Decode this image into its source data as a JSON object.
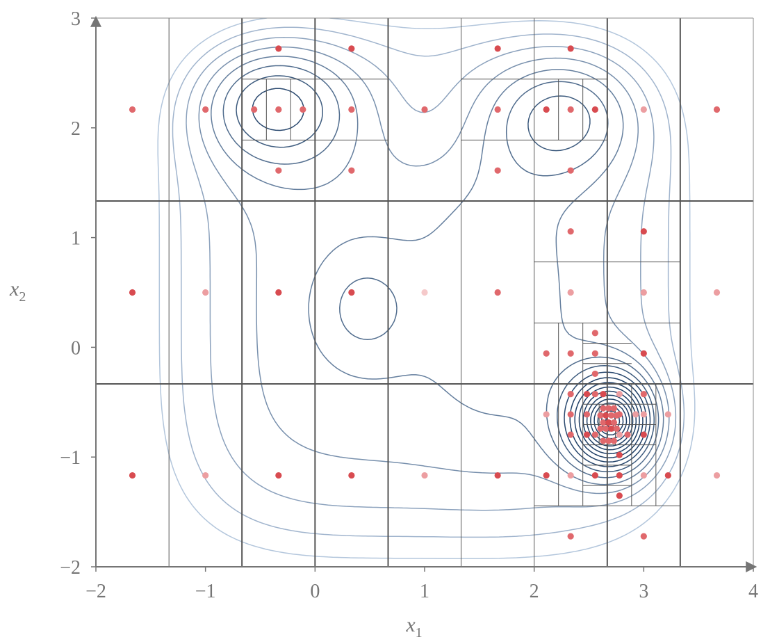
{
  "chart_data": {
    "type": "scatter",
    "title": "",
    "xlabel": "x",
    "xlabel_sub": "1",
    "ylabel": "x",
    "ylabel_sub": "2",
    "xlim": [
      -2,
      4
    ],
    "ylim": [
      -2,
      3
    ],
    "xticks": [
      {
        "value": -2,
        "label": "−2"
      },
      {
        "value": -1,
        "label": "−1"
      },
      {
        "value": 0,
        "label": "0"
      },
      {
        "value": 1,
        "label": "1"
      },
      {
        "value": 2,
        "label": "2"
      },
      {
        "value": 3,
        "label": "3"
      },
      {
        "value": 4,
        "label": "4"
      }
    ],
    "yticks": [
      {
        "value": -2,
        "label": "−2"
      },
      {
        "value": -1,
        "label": "−1"
      },
      {
        "value": 0,
        "label": "0"
      },
      {
        "value": 1,
        "label": "1"
      },
      {
        "value": 2,
        "label": "2"
      },
      {
        "value": 3,
        "label": "3"
      }
    ],
    "grid": false,
    "contour": {
      "description_free": true,
      "levels": 18,
      "color_low": "#1f3f66",
      "color_high": "#c7d8ec"
    },
    "partition_lines": [
      {
        "dir": "v",
        "x": -1.333,
        "y0": -2,
        "y1": 3,
        "weight": "thin"
      },
      {
        "dir": "v",
        "x": -0.667,
        "y0": -2,
        "y1": 3,
        "weight": "thick"
      },
      {
        "dir": "v",
        "x": 0,
        "y0": -2,
        "y1": 3,
        "weight": "thick"
      },
      {
        "dir": "v",
        "x": 0.667,
        "y0": -2,
        "y1": 3,
        "weight": "thick"
      },
      {
        "dir": "v",
        "x": 1.333,
        "y0": -2,
        "y1": 3,
        "weight": "thin"
      },
      {
        "dir": "v",
        "x": 2,
        "y0": -2,
        "y1": 3,
        "weight": "thin"
      },
      {
        "dir": "v",
        "x": 2.667,
        "y0": -2,
        "y1": 3,
        "weight": "thick"
      },
      {
        "dir": "v",
        "x": 3.333,
        "y0": -2,
        "y1": 3,
        "weight": "thick"
      },
      {
        "dir": "h",
        "y": 1.333,
        "x0": -2,
        "x1": 4,
        "weight": "thick"
      },
      {
        "dir": "h",
        "y": -0.333,
        "x0": -2,
        "x1": 4,
        "weight": "thick"
      },
      {
        "dir": "h",
        "y": 2.444,
        "x0": -0.667,
        "x1": 0.667,
        "weight": "thin"
      },
      {
        "dir": "h",
        "y": 1.889,
        "x0": -0.667,
        "x1": 0.667,
        "weight": "thin"
      },
      {
        "dir": "v",
        "x": -0.444,
        "y0": 1.889,
        "y1": 2.444,
        "weight": "thin"
      },
      {
        "dir": "v",
        "x": -0.222,
        "y0": 1.889,
        "y1": 2.444,
        "weight": "thin"
      },
      {
        "dir": "h",
        "y": 2.444,
        "x0": 1.333,
        "x1": 2.667,
        "weight": "thin"
      },
      {
        "dir": "h",
        "y": 1.889,
        "x0": 1.333,
        "x1": 2.667,
        "weight": "thin"
      },
      {
        "dir": "v",
        "x": 2.222,
        "y0": 1.889,
        "y1": 2.444,
        "weight": "thin"
      },
      {
        "dir": "v",
        "x": 2.444,
        "y0": 1.889,
        "y1": 2.444,
        "weight": "thin"
      },
      {
        "dir": "h",
        "y": 0.778,
        "x0": 2,
        "x1": 3.333,
        "weight": "thin"
      },
      {
        "dir": "h",
        "y": 0.222,
        "x0": 2,
        "x1": 3.333,
        "weight": "thin"
      },
      {
        "dir": "h",
        "y": -1.444,
        "x0": 2,
        "x1": 3.333,
        "weight": "thin"
      },
      {
        "dir": "v",
        "x": 2.222,
        "y0": -1.444,
        "y1": 0.222,
        "weight": "thin"
      },
      {
        "dir": "v",
        "x": 2.444,
        "y0": -1.444,
        "y1": 0.222,
        "weight": "thin"
      },
      {
        "dir": "v",
        "x": 2.889,
        "y0": -1.444,
        "y1": -0.333,
        "weight": "thin"
      },
      {
        "dir": "v",
        "x": 3.111,
        "y0": -1.444,
        "y1": -0.333,
        "weight": "thin"
      },
      {
        "dir": "h",
        "y": 0.037,
        "x0": 2.444,
        "x1": 2.889,
        "weight": "thin"
      },
      {
        "dir": "h",
        "y": -0.148,
        "x0": 2.444,
        "x1": 2.889,
        "weight": "thin"
      },
      {
        "dir": "h",
        "y": -0.519,
        "x0": 2.444,
        "x1": 3.111,
        "weight": "thin"
      },
      {
        "dir": "h",
        "y": -0.704,
        "x0": 2.444,
        "x1": 3.111,
        "weight": "thin"
      },
      {
        "dir": "h",
        "y": -0.889,
        "x0": 2.444,
        "x1": 3.111,
        "weight": "thin"
      },
      {
        "dir": "h",
        "y": -1.074,
        "x0": 2.444,
        "x1": 2.889,
        "weight": "thin"
      },
      {
        "dir": "h",
        "y": -1.259,
        "x0": 2.444,
        "x1": 2.889,
        "weight": "thin"
      },
      {
        "dir": "v",
        "x": 2.593,
        "y0": -0.889,
        "y1": -0.519,
        "weight": "thin"
      },
      {
        "dir": "v",
        "x": 2.741,
        "y0": -0.889,
        "y1": -0.519,
        "weight": "thin"
      }
    ],
    "points": [
      {
        "x": -0.333,
        "y": 2.722,
        "s": "dark"
      },
      {
        "x": 0.333,
        "y": 2.722,
        "s": "dark"
      },
      {
        "x": 1.667,
        "y": 2.722,
        "s": "dark"
      },
      {
        "x": 2.333,
        "y": 2.722,
        "s": "dark"
      },
      {
        "x": -1.667,
        "y": 2.167,
        "s": "mid"
      },
      {
        "x": -1.0,
        "y": 2.167,
        "s": "mid"
      },
      {
        "x": -0.556,
        "y": 2.167,
        "s": "mid"
      },
      {
        "x": -0.333,
        "y": 2.167,
        "s": "mid"
      },
      {
        "x": -0.111,
        "y": 2.167,
        "s": "mid"
      },
      {
        "x": 0.333,
        "y": 2.167,
        "s": "mid"
      },
      {
        "x": 1.0,
        "y": 2.167,
        "s": "mid"
      },
      {
        "x": 1.667,
        "y": 2.167,
        "s": "mid"
      },
      {
        "x": 2.111,
        "y": 2.167,
        "s": "dark"
      },
      {
        "x": 2.333,
        "y": 2.167,
        "s": "mid"
      },
      {
        "x": 2.556,
        "y": 2.167,
        "s": "dark"
      },
      {
        "x": 3.0,
        "y": 2.167,
        "s": "light"
      },
      {
        "x": 3.667,
        "y": 2.167,
        "s": "mid"
      },
      {
        "x": -0.333,
        "y": 1.611,
        "s": "mid"
      },
      {
        "x": 0.333,
        "y": 1.611,
        "s": "mid"
      },
      {
        "x": 1.667,
        "y": 1.611,
        "s": "mid"
      },
      {
        "x": 2.333,
        "y": 1.611,
        "s": "mid"
      },
      {
        "x": 2.333,
        "y": 1.056,
        "s": "mid"
      },
      {
        "x": 3.0,
        "y": 1.056,
        "s": "dark"
      },
      {
        "x": -1.667,
        "y": 0.5,
        "s": "dark"
      },
      {
        "x": -1.0,
        "y": 0.5,
        "s": "light"
      },
      {
        "x": -0.333,
        "y": 0.5,
        "s": "dark"
      },
      {
        "x": 0.333,
        "y": 0.5,
        "s": "dark"
      },
      {
        "x": 1.0,
        "y": 0.5,
        "s": "pale"
      },
      {
        "x": 1.667,
        "y": 0.5,
        "s": "mid"
      },
      {
        "x": 2.333,
        "y": 0.5,
        "s": "light"
      },
      {
        "x": 3.0,
        "y": 0.5,
        "s": "light"
      },
      {
        "x": 3.667,
        "y": 0.5,
        "s": "light"
      },
      {
        "x": 2.556,
        "y": 0.13,
        "s": "mid"
      },
      {
        "x": 2.111,
        "y": -0.056,
        "s": "mid"
      },
      {
        "x": 2.333,
        "y": -0.056,
        "s": "mid"
      },
      {
        "x": 2.556,
        "y": -0.056,
        "s": "mid"
      },
      {
        "x": 3.0,
        "y": -0.056,
        "s": "dark"
      },
      {
        "x": 2.556,
        "y": -0.241,
        "s": "mid"
      },
      {
        "x": 2.333,
        "y": -0.426,
        "s": "mid"
      },
      {
        "x": 2.481,
        "y": -0.426,
        "s": "dark"
      },
      {
        "x": 2.556,
        "y": -0.426,
        "s": "mid"
      },
      {
        "x": 2.63,
        "y": -0.426,
        "s": "dark"
      },
      {
        "x": 2.778,
        "y": -0.426,
        "s": "light"
      },
      {
        "x": 3.0,
        "y": -0.426,
        "s": "mid"
      },
      {
        "x": 2.111,
        "y": -0.611,
        "s": "light"
      },
      {
        "x": 2.333,
        "y": -0.611,
        "s": "mid"
      },
      {
        "x": 2.481,
        "y": -0.611,
        "s": "mid"
      },
      {
        "x": 2.778,
        "y": -0.611,
        "s": "mid"
      },
      {
        "x": 2.926,
        "y": -0.611,
        "s": "light"
      },
      {
        "x": 3.0,
        "y": -0.611,
        "s": "light"
      },
      {
        "x": 3.222,
        "y": -0.611,
        "s": "light"
      },
      {
        "x": 2.333,
        "y": -0.796,
        "s": "mid"
      },
      {
        "x": 2.481,
        "y": -0.796,
        "s": "dark"
      },
      {
        "x": 2.556,
        "y": -0.796,
        "s": "mid"
      },
      {
        "x": 2.778,
        "y": -0.796,
        "s": "light"
      },
      {
        "x": 2.852,
        "y": -0.796,
        "s": "mid"
      },
      {
        "x": 3.0,
        "y": -0.796,
        "s": "dark"
      },
      {
        "x": 2.63,
        "y": -0.556,
        "s": "mid"
      },
      {
        "x": 2.679,
        "y": -0.556,
        "s": "mid"
      },
      {
        "x": 2.728,
        "y": -0.556,
        "s": "mid"
      },
      {
        "x": 2.605,
        "y": -0.62,
        "s": "mid"
      },
      {
        "x": 2.654,
        "y": -0.62,
        "s": "dark"
      },
      {
        "x": 2.704,
        "y": -0.62,
        "s": "mid"
      },
      {
        "x": 2.753,
        "y": -0.62,
        "s": "mid"
      },
      {
        "x": 2.63,
        "y": -0.685,
        "s": "mid"
      },
      {
        "x": 2.679,
        "y": -0.685,
        "s": "dark"
      },
      {
        "x": 2.728,
        "y": -0.685,
        "s": "mid"
      },
      {
        "x": 2.605,
        "y": -0.741,
        "s": "mid"
      },
      {
        "x": 2.654,
        "y": -0.741,
        "s": "mid"
      },
      {
        "x": 2.704,
        "y": -0.741,
        "s": "dark"
      },
      {
        "x": 2.753,
        "y": -0.741,
        "s": "mid"
      },
      {
        "x": 2.63,
        "y": -0.852,
        "s": "mid"
      },
      {
        "x": 2.679,
        "y": -0.852,
        "s": "mid"
      },
      {
        "x": 2.728,
        "y": -0.852,
        "s": "mid"
      },
      {
        "x": 2.778,
        "y": -0.981,
        "s": "dark"
      },
      {
        "x": -1.667,
        "y": -1.167,
        "s": "dark"
      },
      {
        "x": -1.0,
        "y": -1.167,
        "s": "light"
      },
      {
        "x": -0.333,
        "y": -1.167,
        "s": "dark"
      },
      {
        "x": 0.333,
        "y": -1.167,
        "s": "dark"
      },
      {
        "x": 1.0,
        "y": -1.167,
        "s": "light"
      },
      {
        "x": 1.667,
        "y": -1.167,
        "s": "dark"
      },
      {
        "x": 2.111,
        "y": -1.167,
        "s": "dark"
      },
      {
        "x": 2.333,
        "y": -1.167,
        "s": "light"
      },
      {
        "x": 2.556,
        "y": -1.167,
        "s": "dark"
      },
      {
        "x": 2.778,
        "y": -1.167,
        "s": "dark"
      },
      {
        "x": 3.0,
        "y": -1.167,
        "s": "light"
      },
      {
        "x": 3.222,
        "y": -1.167,
        "s": "dark"
      },
      {
        "x": 3.667,
        "y": -1.167,
        "s": "light"
      },
      {
        "x": 2.778,
        "y": -1.352,
        "s": "dark"
      },
      {
        "x": 2.333,
        "y": -1.722,
        "s": "mid"
      },
      {
        "x": 3.0,
        "y": -1.722,
        "s": "mid"
      }
    ],
    "point_colors": {
      "dark": "#d84b50",
      "mid": "#e0686c",
      "light": "#ec9ea1",
      "pale": "#f5c9ca"
    },
    "colors": {
      "axis": "#757575",
      "partition": "#555555",
      "contour": "#2b4a6e"
    }
  }
}
